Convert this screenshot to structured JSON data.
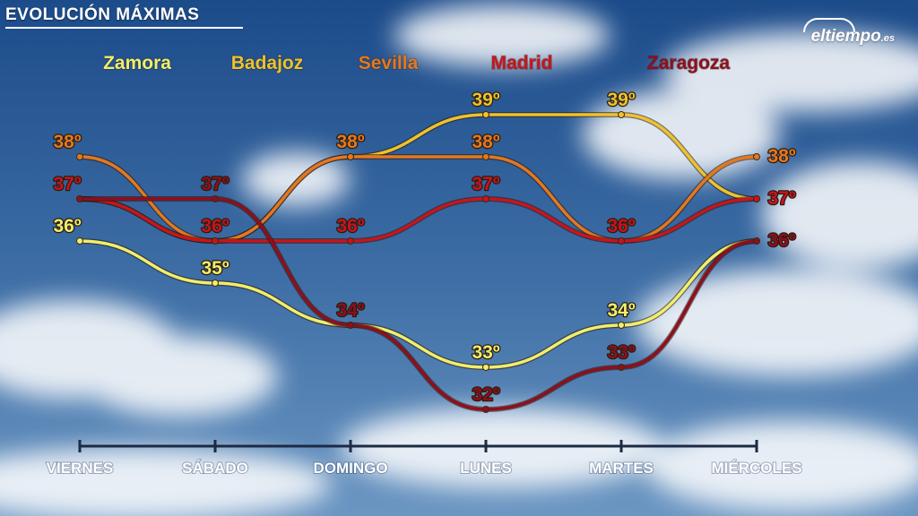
{
  "title": "EVOLUCIÓN MÁXIMAS",
  "brand": {
    "name": "eltiempo",
    "suffix": ".es"
  },
  "colors": {
    "sky_top": "#1e4f8f",
    "sky_bottom": "#5b88b8",
    "axis": "#1c2a44",
    "Zamora": "#f2ee6a",
    "Badajoz": "#eec22c",
    "Sevilla": "#e4781f",
    "Madrid": "#c8141c",
    "Zaragoza": "#8e0f1c"
  },
  "chart_data": {
    "type": "line",
    "title": "EVOLUCIÓN MÁXIMAS",
    "categories": [
      "VIERNES",
      "SÁBADO",
      "DOMINGO",
      "LUNES",
      "MARTES",
      "MIÉRCOLES"
    ],
    "unit": "º",
    "legend_placement": "top",
    "grid": false,
    "series": [
      {
        "name": "Zamora",
        "values": [
          36,
          35,
          34,
          33,
          34,
          36
        ]
      },
      {
        "name": "Badajoz",
        "values": [
          37,
          36,
          38,
          39,
          39,
          37
        ]
      },
      {
        "name": "Sevilla",
        "values": [
          38,
          36,
          38,
          38,
          36,
          38
        ]
      },
      {
        "name": "Madrid",
        "values": [
          37,
          36,
          36,
          37,
          36,
          37
        ]
      },
      {
        "name": "Zaragoza",
        "values": [
          37,
          37,
          34,
          32,
          33,
          36
        ]
      }
    ],
    "data_labels": [
      {
        "series": "Zamora",
        "index": 0,
        "text": "36º"
      },
      {
        "series": "Zamora",
        "index": 1,
        "text": "35º"
      },
      {
        "series": "Zamora",
        "index": 3,
        "text": "33º"
      },
      {
        "series": "Zamora",
        "index": 4,
        "text": "34º"
      },
      {
        "series": "Sevilla",
        "index": 0,
        "text": "38º"
      },
      {
        "series": "Sevilla",
        "index": 2,
        "text": "38º"
      },
      {
        "series": "Sevilla",
        "index": 3,
        "text": "38º"
      },
      {
        "series": "Sevilla",
        "index": 5,
        "text": "38º"
      },
      {
        "series": "Badajoz",
        "index": 3,
        "text": "39º"
      },
      {
        "series": "Badajoz",
        "index": 4,
        "text": "39º"
      },
      {
        "series": "Madrid",
        "index": 0,
        "text": "37º"
      },
      {
        "series": "Madrid",
        "index": 1,
        "text": "36º"
      },
      {
        "series": "Madrid",
        "index": 2,
        "text": "36º"
      },
      {
        "series": "Madrid",
        "index": 3,
        "text": "37º"
      },
      {
        "series": "Madrid",
        "index": 4,
        "text": "36º"
      },
      {
        "series": "Madrid",
        "index": 5,
        "text": "37º"
      },
      {
        "series": "Zaragoza",
        "index": 1,
        "text": "37º"
      },
      {
        "series": "Zaragoza",
        "index": 2,
        "text": "34º"
      },
      {
        "series": "Zaragoza",
        "index": 3,
        "text": "32º"
      },
      {
        "series": "Zaragoza",
        "index": 4,
        "text": "33º"
      },
      {
        "series": "Zaragoza",
        "index": 5,
        "text": "36º"
      }
    ],
    "ylim": [
      31,
      40
    ]
  }
}
